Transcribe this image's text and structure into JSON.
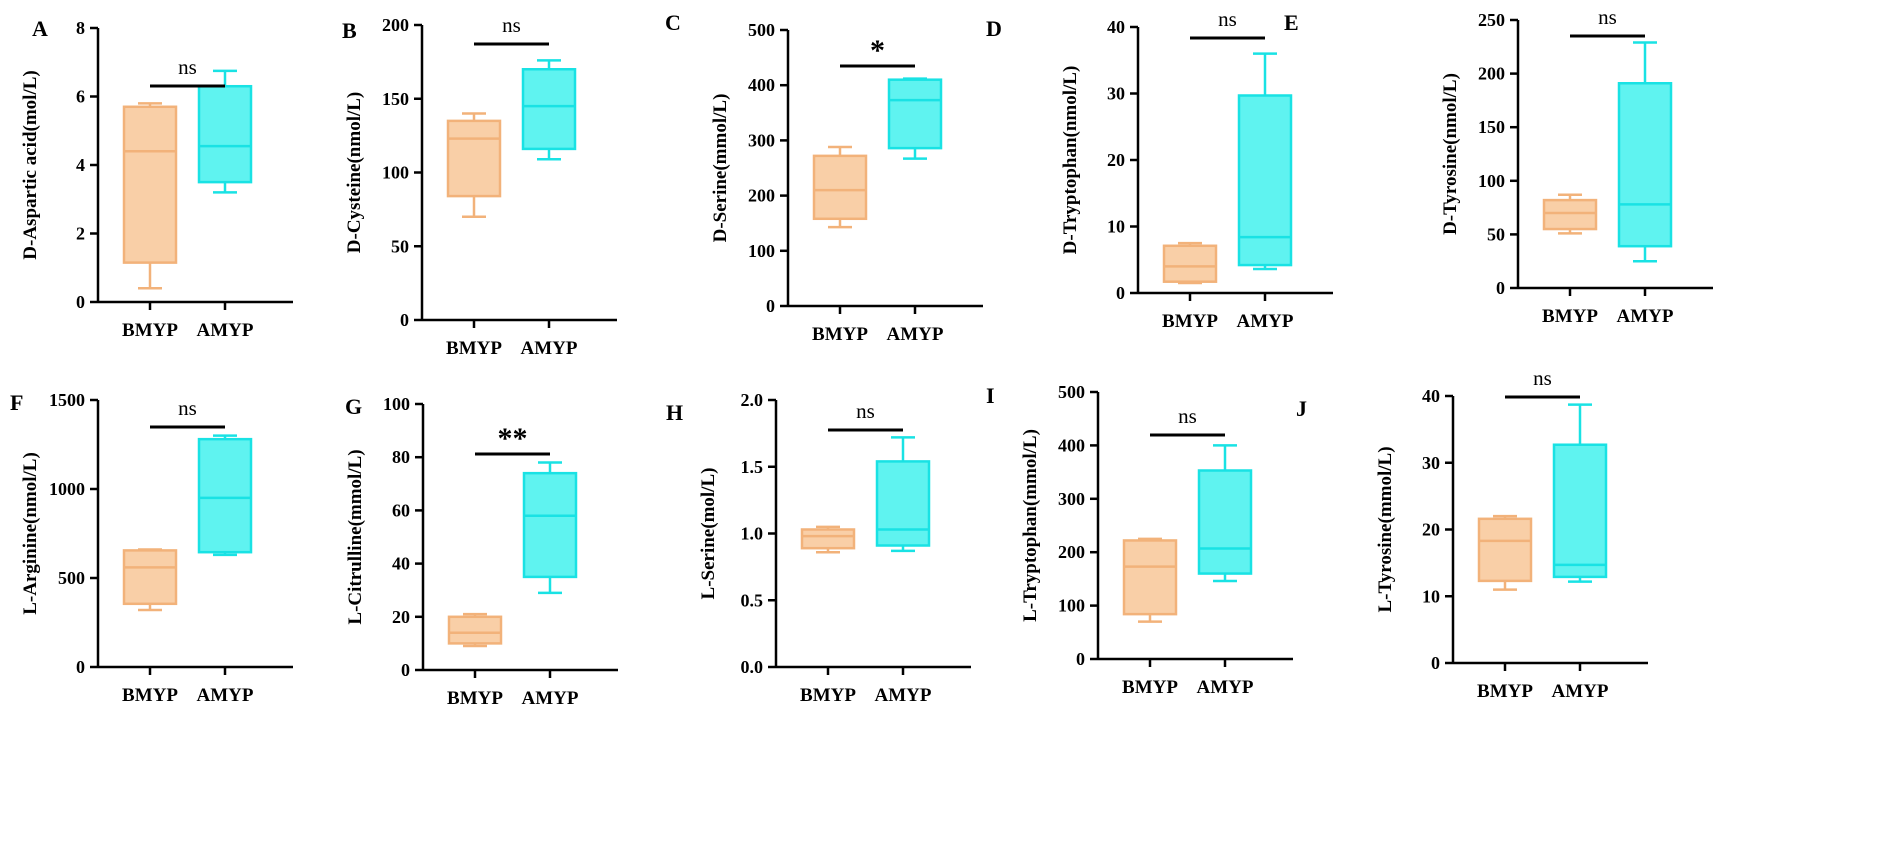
{
  "figure": {
    "group_labels": [
      "BMYP",
      "AMYP"
    ]
  },
  "colors": {
    "bmyp_fill": "#f9cfa7",
    "bmyp_stroke": "#f2b27a",
    "amyp_fill": "#5ff3f0",
    "amyp_stroke": "#19e2e4"
  },
  "chart_data": [
    {
      "type": "box",
      "panel": "A",
      "ylabel": "D-Aspartic acid(mol/L)",
      "categories": [
        "BMYP",
        "AMYP"
      ],
      "yticks": [
        0,
        2,
        4,
        6,
        8
      ],
      "ylim": [
        0,
        8
      ],
      "significance": "ns",
      "series": [
        {
          "name": "BMYP",
          "min": 0.4,
          "q1": 1.15,
          "median": 4.4,
          "q3": 5.7,
          "max": 5.8
        },
        {
          "name": "AMYP",
          "min": 3.2,
          "q1": 3.5,
          "median": 4.55,
          "q3": 6.3,
          "max": 6.75
        }
      ]
    },
    {
      "type": "box",
      "panel": "B",
      "ylabel": "D-Cysteine(nmol/L)",
      "categories": [
        "BMYP",
        "AMYP"
      ],
      "yticks": [
        0,
        50,
        100,
        150,
        200
      ],
      "ylim": [
        0,
        200
      ],
      "significance": "ns",
      "series": [
        {
          "name": "BMYP",
          "min": 70,
          "q1": 84,
          "median": 123,
          "q3": 135,
          "max": 140
        },
        {
          "name": "AMYP",
          "min": 109,
          "q1": 116,
          "median": 145,
          "q3": 170,
          "max": 176
        }
      ]
    },
    {
      "type": "box",
      "panel": "C",
      "ylabel": "D-Serine(mmol/L)",
      "categories": [
        "BMYP",
        "AMYP"
      ],
      "yticks": [
        0,
        100,
        200,
        300,
        400,
        500
      ],
      "ylim": [
        0,
        500
      ],
      "significance": "*",
      "series": [
        {
          "name": "BMYP",
          "min": 143,
          "q1": 158,
          "median": 210,
          "q3": 272,
          "max": 288
        },
        {
          "name": "AMYP",
          "min": 267,
          "q1": 286,
          "median": 373,
          "q3": 410,
          "max": 412
        }
      ]
    },
    {
      "type": "box",
      "panel": "D",
      "ylabel": "D-Tryptophan(nmol/L)",
      "categories": [
        "BMYP",
        "AMYP"
      ],
      "yticks": [
        0,
        10,
        20,
        30,
        40
      ],
      "ylim": [
        0,
        40
      ],
      "significance": "ns",
      "series": [
        {
          "name": "BMYP",
          "min": 1.5,
          "q1": 1.7,
          "median": 4.0,
          "q3": 7.1,
          "max": 7.5
        },
        {
          "name": "AMYP",
          "min": 3.6,
          "q1": 4.2,
          "median": 8.4,
          "q3": 29.7,
          "max": 36.0
        }
      ]
    },
    {
      "type": "box",
      "panel": "E",
      "ylabel": "D-Tyrosine(nmol/L)",
      "categories": [
        "BMYP",
        "AMYP"
      ],
      "yticks": [
        0,
        50,
        100,
        150,
        200,
        250
      ],
      "ylim": [
        0,
        250
      ],
      "significance": "ns",
      "series": [
        {
          "name": "BMYP",
          "min": 51,
          "q1": 55,
          "median": 70,
          "q3": 82,
          "max": 87
        },
        {
          "name": "AMYP",
          "min": 25,
          "q1": 39,
          "median": 78,
          "q3": 191,
          "max": 229
        }
      ]
    },
    {
      "type": "box",
      "panel": "F",
      "ylabel": "L-Arginine(nmol/L)",
      "categories": [
        "BMYP",
        "AMYP"
      ],
      "yticks": [
        0,
        500,
        1000,
        1500
      ],
      "ylim": [
        0,
        1500
      ],
      "significance": "ns",
      "series": [
        {
          "name": "BMYP",
          "min": 320,
          "q1": 355,
          "median": 560,
          "q3": 655,
          "max": 660
        },
        {
          "name": "AMYP",
          "min": 630,
          "q1": 645,
          "median": 950,
          "q3": 1280,
          "max": 1300
        }
      ]
    },
    {
      "type": "box",
      "panel": "G",
      "ylabel": "L-Citrulline(mmol/L)",
      "categories": [
        "BMYP",
        "AMYP"
      ],
      "yticks": [
        0,
        20,
        40,
        60,
        80,
        100
      ],
      "ylim": [
        0,
        100
      ],
      "significance": "**",
      "series": [
        {
          "name": "BMYP",
          "min": 9,
          "q1": 10,
          "median": 14,
          "q3": 20,
          "max": 21
        },
        {
          "name": "AMYP",
          "min": 29,
          "q1": 35,
          "median": 58,
          "q3": 74,
          "max": 78
        }
      ]
    },
    {
      "type": "box",
      "panel": "H",
      "ylabel": "L-Serine(mol/L)",
      "categories": [
        "BMYP",
        "AMYP"
      ],
      "yticks": [
        "0.0",
        "0.5",
        "1.0",
        "1.5",
        "2.0"
      ],
      "ylim": [
        0,
        2
      ],
      "significance": "ns",
      "series": [
        {
          "name": "BMYP",
          "min": 0.86,
          "q1": 0.89,
          "median": 0.98,
          "q3": 1.03,
          "max": 1.05
        },
        {
          "name": "AMYP",
          "min": 0.87,
          "q1": 0.91,
          "median": 1.03,
          "q3": 1.54,
          "max": 1.72
        }
      ]
    },
    {
      "type": "box",
      "panel": "I",
      "ylabel": "L-Tryptophan(mmol/L)",
      "categories": [
        "BMYP",
        "AMYP"
      ],
      "yticks": [
        0,
        100,
        200,
        300,
        400,
        500
      ],
      "ylim": [
        0,
        500
      ],
      "significance": "ns",
      "series": [
        {
          "name": "BMYP",
          "min": 70,
          "q1": 84,
          "median": 173,
          "q3": 222,
          "max": 225
        },
        {
          "name": "AMYP",
          "min": 146,
          "q1": 160,
          "median": 207,
          "q3": 353,
          "max": 400
        }
      ]
    },
    {
      "type": "box",
      "panel": "J",
      "ylabel": "L-Tyrosine(mmol/L)",
      "categories": [
        "BMYP",
        "AMYP"
      ],
      "yticks": [
        0,
        10,
        20,
        30,
        40
      ],
      "ylim": [
        0,
        40
      ],
      "significance": "ns",
      "series": [
        {
          "name": "BMYP",
          "min": 11,
          "q1": 12.3,
          "median": 18.3,
          "q3": 21.6,
          "max": 22
        },
        {
          "name": "AMYP",
          "min": 12.2,
          "q1": 12.9,
          "median": 14.7,
          "q3": 32.7,
          "max": 38.7
        }
      ]
    }
  ]
}
